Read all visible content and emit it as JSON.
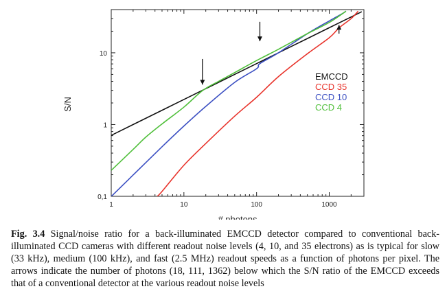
{
  "chart_data": {
    "type": "line",
    "x_scale": "log",
    "y_scale": "log",
    "xlim": [
      1,
      3000
    ],
    "ylim": [
      0.1,
      40
    ],
    "xlabel": "# photons",
    "ylabel": "S/N",
    "x_ticks": [
      {
        "value": 1,
        "label": "1"
      },
      {
        "value": 10,
        "label": "10"
      },
      {
        "value": 100,
        "label": "100"
      },
      {
        "value": 1000,
        "label": "1000"
      }
    ],
    "y_ticks": [
      {
        "value": 0.1,
        "label": "0,1"
      },
      {
        "value": 1,
        "label": "1"
      },
      {
        "value": 10,
        "label": "10"
      }
    ],
    "legend_placement": "right",
    "series": [
      {
        "name": "EMCCD",
        "color": "#111111",
        "points": [
          [
            1,
            0.707
          ],
          [
            3,
            1.225
          ],
          [
            10,
            2.236
          ],
          [
            30,
            3.873
          ],
          [
            100,
            7.071
          ],
          [
            300,
            12.25
          ],
          [
            1000,
            22.36
          ],
          [
            2800,
            37.4
          ]
        ]
      },
      {
        "name": "CCD 35",
        "color": "#e8322a",
        "points": [
          [
            4.3,
            0.1
          ],
          [
            5,
            0.117
          ],
          [
            10,
            0.271
          ],
          [
            20,
            0.544
          ],
          [
            50,
            1.31
          ],
          [
            100,
            2.4
          ],
          [
            200,
            4.66
          ],
          [
            500,
            9.7
          ],
          [
            1000,
            16.2
          ],
          [
            1362,
            22.2
          ],
          [
            2000,
            30.0
          ],
          [
            2500,
            38.0
          ]
        ]
      },
      {
        "name": "CCD 10",
        "color": "#3b4fc2",
        "points": [
          [
            1,
            0.0995
          ],
          [
            2,
            0.198
          ],
          [
            5,
            0.49
          ],
          [
            10,
            0.953
          ],
          [
            20,
            1.79
          ],
          [
            50,
            3.87
          ],
          [
            100,
            6.0
          ],
          [
            111,
            7.07
          ],
          [
            200,
            10.0
          ],
          [
            500,
            18.5
          ],
          [
            1000,
            27.8
          ],
          [
            1500,
            35.0
          ],
          [
            1700,
            38.0
          ]
        ]
      },
      {
        "name": "CCD 4",
        "color": "#4fbf3a",
        "points": [
          [
            1,
            0.23
          ],
          [
            2,
            0.45
          ],
          [
            3,
            0.67
          ],
          [
            5,
            1.02
          ],
          [
            10,
            1.75
          ],
          [
            18,
            2.97
          ],
          [
            30,
            4.0
          ],
          [
            50,
            5.3
          ],
          [
            100,
            7.8
          ],
          [
            200,
            11.2
          ],
          [
            500,
            18.5
          ],
          [
            1000,
            26.5
          ],
          [
            1700,
            38.0
          ]
        ]
      }
    ],
    "arrows": [
      {
        "x": 18,
        "direction": "down",
        "from_y": 8.2,
        "to_y": 3.6
      },
      {
        "x": 111,
        "direction": "down",
        "from_y": 27,
        "to_y": 14.5
      },
      {
        "x": 1362,
        "direction": "up",
        "from_y": 18.5,
        "to_y": 24.5
      }
    ]
  },
  "caption": {
    "label": "Fig. 3.4",
    "text": "Signal/noise ratio for a back-illuminated EMCCD detector compared to conventional back-illuminated CCD cameras with different readout noise levels (4, 10, and 35 electrons) as is typical for slow (33 kHz), medium (100 kHz), and fast (2.5 MHz) readout speeds as a function of photons per pixel. The arrows indicate the number of photons (18, 111, 1362) below which the S/N ratio of the EMCCD exceeds that of a conventional detector at the various readout noise levels"
  }
}
